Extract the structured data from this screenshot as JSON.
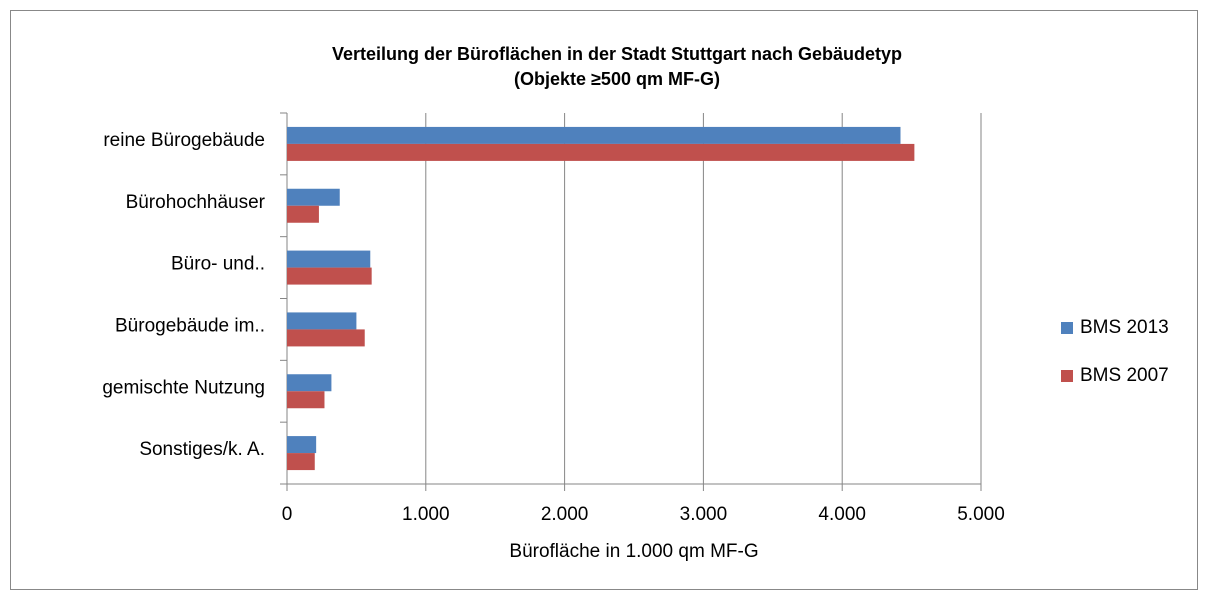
{
  "chart_data": {
    "type": "bar",
    "orientation": "horizontal",
    "title": "Verteilung der Büroflächen in der Stadt Stuttgart nach Gebäudetyp",
    "subtitle": "(Objekte ≥500 qm MF-G)",
    "x_label": "Bürofläche in 1.000 qm MF-G",
    "categories": [
      "reine Bürogebäude",
      "Bürohochhäuser",
      "Büro- und..",
      "Bürogebäude im..",
      "gemischte Nutzung",
      "Sonstiges/k. A."
    ],
    "series": [
      {
        "name": "BMS 2013",
        "color": "#4f81bd",
        "values": [
          4420,
          380,
          600,
          500,
          320,
          210
        ]
      },
      {
        "name": "BMS 2007",
        "color": "#c0504d",
        "values": [
          4520,
          230,
          610,
          560,
          270,
          200
        ]
      }
    ],
    "xlim": [
      0,
      5000
    ],
    "xticks": [
      0,
      {
        "value": 1000,
        "label": "1.000"
      },
      {
        "value": 2000,
        "label": "2.000"
      },
      {
        "value": 3000,
        "label": "3.000"
      },
      {
        "value": 4000,
        "label": "4.000"
      },
      {
        "value": 5000,
        "label": "5.000"
      }
    ],
    "grid": true,
    "legend": "right"
  }
}
